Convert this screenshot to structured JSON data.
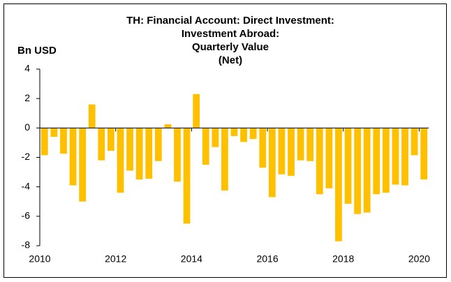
{
  "chart_data": {
    "type": "bar",
    "title": [
      "TH: Financial Account: Direct Investment:",
      "Investment Abroad:",
      "Quarterly Value",
      "(Net)"
    ],
    "y_label": "Bn USD",
    "x": [
      2010.125,
      2010.375,
      2010.625,
      2010.875,
      2011.125,
      2011.375,
      2011.625,
      2011.875,
      2012.125,
      2012.375,
      2012.625,
      2012.875,
      2013.125,
      2013.375,
      2013.625,
      2013.875,
      2014.125,
      2014.375,
      2014.625,
      2014.875,
      2015.125,
      2015.375,
      2015.625,
      2015.875,
      2016.125,
      2016.375,
      2016.625,
      2016.875,
      2017.125,
      2017.375,
      2017.625,
      2017.875,
      2018.125,
      2018.375,
      2018.625,
      2018.875,
      2019.125,
      2019.375,
      2019.625,
      2019.875,
      2020.125
    ],
    "values": [
      -1.85,
      -0.6,
      -1.75,
      -3.9,
      -5.0,
      1.6,
      -2.2,
      -1.55,
      -4.4,
      -2.9,
      -3.5,
      -3.45,
      -2.25,
      0.25,
      -3.65,
      -6.5,
      2.3,
      -2.5,
      -1.3,
      -4.25,
      -0.55,
      -0.95,
      -0.75,
      -2.7,
      -4.7,
      -3.15,
      -3.25,
      -2.2,
      -2.25,
      -4.5,
      -4.1,
      -7.7,
      -5.15,
      -5.85,
      -5.75,
      -4.5,
      -4.4,
      -3.85,
      -3.9,
      -1.85,
      -3.5
    ],
    "color": "#ffc000",
    "xlim": [
      2010,
      2020.25
    ],
    "xticks": [
      2010,
      2012,
      2014,
      2016,
      2018,
      2020
    ],
    "ylim": [
      -8,
      4
    ],
    "yticks": [
      -8,
      -6,
      -4,
      -2,
      0,
      2,
      4
    ]
  }
}
